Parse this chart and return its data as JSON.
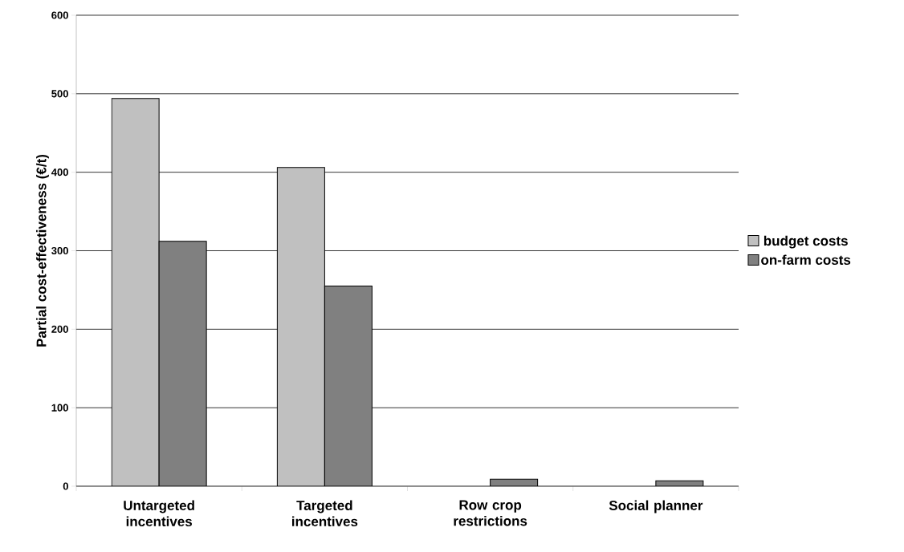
{
  "chart_data": {
    "type": "bar",
    "ylabel": "Partial cost-effectiveness (€/t)",
    "categories": [
      "Untargeted incentives",
      "Targeted incentives",
      "Row crop restrictions",
      "Social planner"
    ],
    "series": [
      {
        "name": "budget costs",
        "color": "#c0c0c0",
        "values": [
          494,
          406,
          null,
          null
        ]
      },
      {
        "name": "on-farm costs",
        "color": "#808080",
        "values": [
          312,
          255,
          9,
          7
        ]
      }
    ],
    "ylim": [
      0,
      600
    ],
    "yticks": [
      0,
      100,
      200,
      300,
      400,
      500,
      600
    ],
    "grid": "y",
    "legend": "right"
  }
}
